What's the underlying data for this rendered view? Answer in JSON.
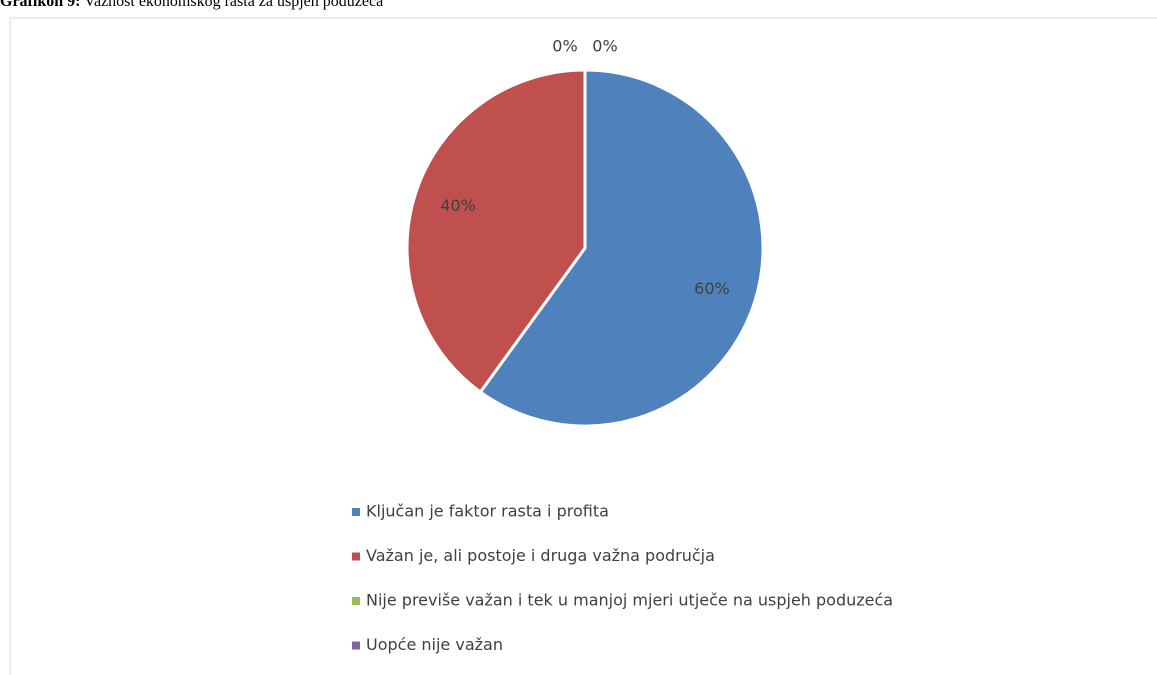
{
  "chart_data": {
    "type": "pie",
    "figure_label": "Grafikon 9:",
    "title": "Važnost ekonomskog rasta za uspjeh poduzeća",
    "categories": [
      "Ključan je faktor rasta i profita",
      "Važan je, ali postoje i druga važna područja",
      "Nije previše važan i tek u manjoj mjeri utječe na uspjeh poduzeća",
      "Uopće nije važan"
    ],
    "values": [
      60,
      40,
      0,
      0
    ],
    "value_labels": [
      "60%",
      "40%",
      "0%",
      "0%"
    ],
    "colors": [
      "#4f81bd",
      "#c0504d",
      "#9bbb59",
      "#8064a2"
    ],
    "legend": "bottom"
  }
}
